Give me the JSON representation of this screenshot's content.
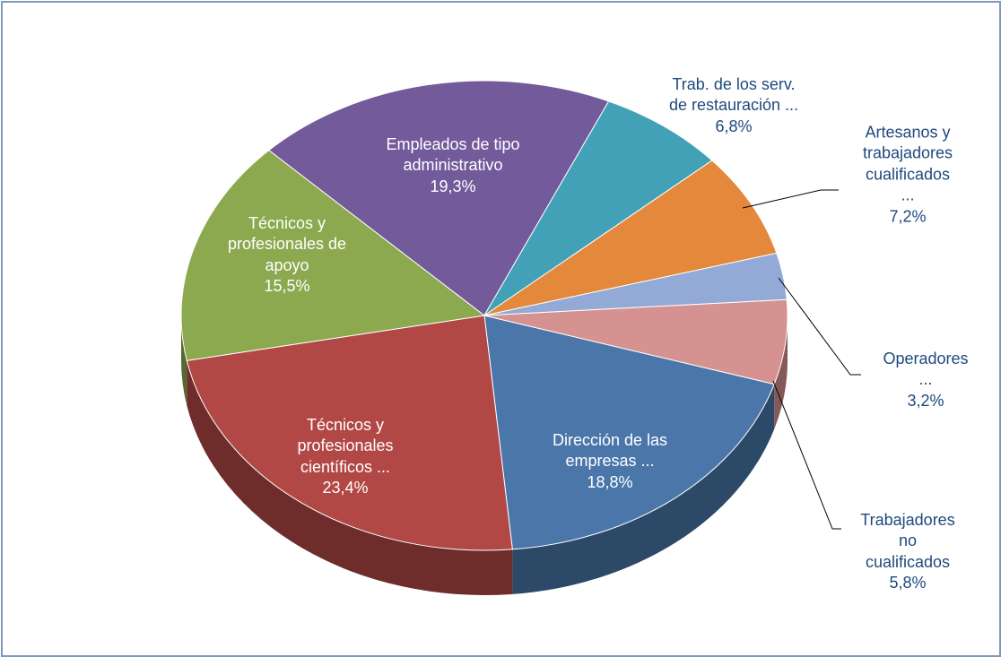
{
  "chart_data": {
    "type": "pie",
    "categories": [
      "Dirección de las\nempresas ...",
      "Técnicos y\nprofesionales\ncientíficos ...",
      "Técnicos y\nprofesionales de\napoyo",
      "Empleados de tipo\nadministrativo",
      "Trab. de los serv.\nde restauración ...",
      "Artesanos y\ntrabajadores\ncualificados ...",
      "Operadores ...",
      "Trabajadores no\ncualificados"
    ],
    "values": [
      18.8,
      23.4,
      15.5,
      19.3,
      6.8,
      7.2,
      3.2,
      5.8
    ],
    "value_labels": [
      "18,8%",
      "23,4%",
      "15,5%",
      "19,3%",
      "6,8%",
      "7,2%",
      "3,2%",
      "5,8%"
    ],
    "colors": [
      "#4a76a9",
      "#b24845",
      "#8ca94f",
      "#735a9b",
      "#42a0b7",
      "#e4883b",
      "#93aad6",
      "#d69290"
    ]
  }
}
